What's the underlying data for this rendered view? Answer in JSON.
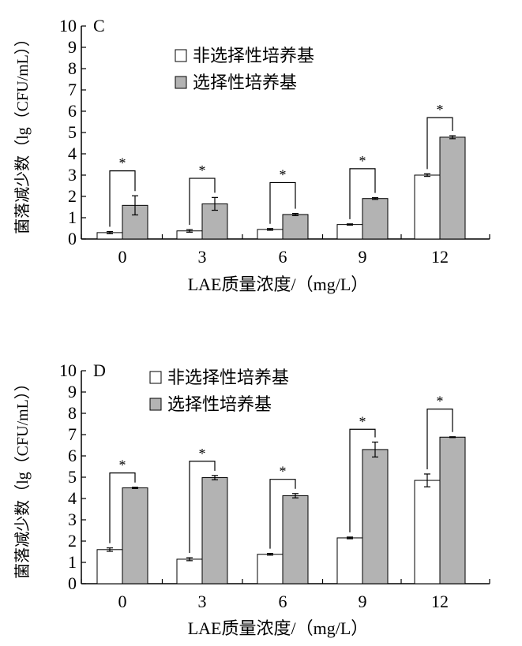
{
  "chart_data": [
    {
      "type": "bar",
      "panel_label": "C",
      "ylabel": "菌落减少数（lg（CFU/mL））",
      "xlabel": "LAE质量浓度/（mg/L）",
      "categories": [
        "0",
        "3",
        "6",
        "9",
        "12"
      ],
      "ylim": [
        0,
        10
      ],
      "yticks": [
        "0",
        "1",
        "2",
        "3",
        "4",
        "5",
        "6",
        "7",
        "8",
        "9",
        "10"
      ],
      "legend_position": "top-left",
      "series": [
        {
          "name": "非选择性培养基",
          "color": "#ffffff",
          "values": [
            0.3,
            0.38,
            0.45,
            0.68,
            3.0
          ],
          "errors": [
            0.05,
            0.06,
            0.04,
            0.03,
            0.06
          ]
        },
        {
          "name": "选择性培养基",
          "color": "#b3b3b3",
          "values": [
            1.58,
            1.65,
            1.15,
            1.9,
            4.78
          ],
          "errors": [
            0.45,
            0.3,
            0.05,
            0.04,
            0.07
          ]
        }
      ],
      "significance": [
        "*",
        "*",
        "*",
        "*",
        "*"
      ],
      "bracket_tops": [
        3.2,
        2.85,
        2.65,
        3.3,
        5.7
      ]
    },
    {
      "type": "bar",
      "panel_label": "D",
      "ylabel": "菌落减少数（lg（CFU/mL））",
      "xlabel": "LAE质量浓度/（mg/L）",
      "categories": [
        "0",
        "3",
        "6",
        "9",
        "12"
      ],
      "ylim": [
        0,
        10
      ],
      "yticks": [
        "0",
        "1",
        "2",
        "3",
        "4",
        "5",
        "6",
        "7",
        "8",
        "9",
        "10"
      ],
      "legend_position": "top-left",
      "series": [
        {
          "name": "非选择性培养基",
          "color": "#ffffff",
          "values": [
            1.6,
            1.15,
            1.38,
            2.15,
            4.85
          ],
          "errors": [
            0.08,
            0.07,
            0.04,
            0.04,
            0.3
          ]
        },
        {
          "name": "选择性培养基",
          "color": "#b3b3b3",
          "values": [
            4.5,
            4.98,
            4.13,
            6.3,
            6.88
          ],
          "errors": [
            0.03,
            0.1,
            0.1,
            0.35,
            0.02
          ]
        }
      ],
      "significance": [
        "*",
        "*",
        "*",
        "*",
        "*"
      ],
      "bracket_tops": [
        5.2,
        5.75,
        4.9,
        7.25,
        8.2
      ]
    }
  ]
}
